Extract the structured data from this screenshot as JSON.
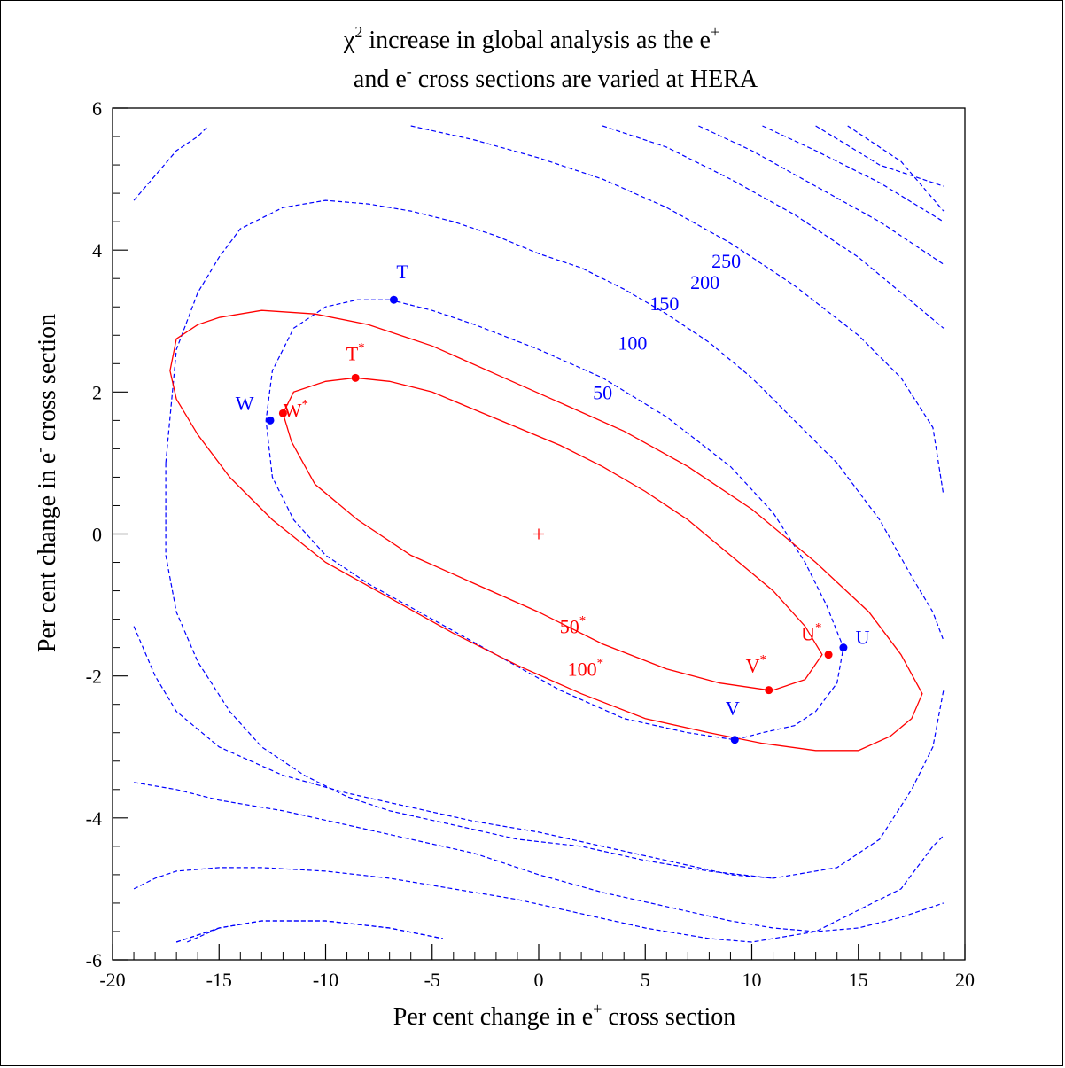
{
  "chart_data": {
    "type": "contour",
    "title": {
      "chi": "χ",
      "line1_after": " increase in global analysis as the e",
      "line2_a": "and e",
      "line2_b": " cross sections are varied at HERA"
    },
    "xlabel": {
      "pre": "Per cent change in e",
      "sup": "+",
      "post": " cross section"
    },
    "ylabel": {
      "pre": "Per cent change in e",
      "sup": "-",
      "post": " cross section"
    },
    "xlim": [
      -20,
      20
    ],
    "ylim": [
      -6,
      6
    ],
    "x_ticks": [
      {
        "v": -20,
        "label": "-20"
      },
      {
        "v": -15,
        "label": "-15"
      },
      {
        "v": -10,
        "label": "-10"
      },
      {
        "v": -5,
        "label": "-5"
      },
      {
        "v": 0,
        "label": "0"
      },
      {
        "v": 5,
        "label": "5"
      },
      {
        "v": 10,
        "label": "10"
      },
      {
        "v": 15,
        "label": "15"
      },
      {
        "v": 20,
        "label": "20"
      }
    ],
    "y_ticks": [
      {
        "v": -6,
        "label": "-6"
      },
      {
        "v": -4,
        "label": "-4"
      },
      {
        "v": -2,
        "label": "-2"
      },
      {
        "v": 0,
        "label": "0"
      },
      {
        "v": 2,
        "label": "2"
      },
      {
        "v": 4,
        "label": "4"
      },
      {
        "v": 6,
        "label": "6"
      }
    ],
    "colors": {
      "blue": "#0000ff",
      "red": "#ff0000",
      "axis": "#000000"
    },
    "center": [
      0,
      0
    ],
    "blue_contours": [
      {
        "points": [
          [
            -19,
            4.7
          ],
          [
            -18,
            5.05
          ],
          [
            -17,
            5.4
          ],
          [
            -16,
            5.6
          ],
          [
            -15.5,
            5.75
          ]
        ]
      },
      {
        "points": [
          [
            -6,
            5.75
          ],
          [
            -3,
            5.55
          ],
          [
            0,
            5.3
          ],
          [
            3,
            5.0
          ],
          [
            6,
            4.6
          ],
          [
            9,
            4.1
          ],
          [
            12,
            3.5
          ],
          [
            15,
            2.8
          ],
          [
            17,
            2.2
          ],
          [
            18.5,
            1.5
          ],
          [
            19,
            0.55
          ]
        ]
      },
      {
        "points": [
          [
            3,
            5.75
          ],
          [
            6,
            5.45
          ],
          [
            9,
            5.0
          ],
          [
            12,
            4.5
          ],
          [
            15,
            3.9
          ],
          [
            17,
            3.4
          ],
          [
            19,
            2.9
          ]
        ]
      },
      {
        "points": [
          [
            7.5,
            5.75
          ],
          [
            10,
            5.4
          ],
          [
            13,
            4.9
          ],
          [
            16,
            4.4
          ],
          [
            19,
            3.8
          ]
        ]
      },
      {
        "points": [
          [
            10.5,
            5.75
          ],
          [
            13,
            5.4
          ],
          [
            16,
            4.95
          ],
          [
            19,
            4.4
          ]
        ]
      },
      {
        "points": [
          [
            13,
            5.75
          ],
          [
            16,
            5.2
          ],
          [
            19,
            4.9
          ]
        ]
      },
      {
        "points": [
          [
            14.5,
            5.75
          ],
          [
            17,
            5.25
          ],
          [
            19,
            4.55
          ]
        ]
      },
      {
        "points": [
          [
            -17.5,
            1.0
          ],
          [
            -17,
            2.6
          ],
          [
            -16,
            3.4
          ],
          [
            -15,
            3.9
          ],
          [
            -14,
            4.3
          ],
          [
            -12,
            4.6
          ],
          [
            -10,
            4.7
          ],
          [
            -8,
            4.65
          ],
          [
            -6,
            4.55
          ],
          [
            -4,
            4.4
          ],
          [
            -2,
            4.2
          ],
          [
            0,
            3.95
          ],
          [
            2,
            3.75
          ],
          [
            4,
            3.45
          ],
          [
            6,
            3.1
          ],
          [
            8,
            2.7
          ],
          [
            10,
            2.2
          ],
          [
            12,
            1.6
          ],
          [
            14,
            1.0
          ],
          [
            16,
            0.2
          ],
          [
            17.5,
            -0.6
          ],
          [
            18.5,
            -1.1
          ],
          [
            19,
            -1.5
          ]
        ]
      },
      {
        "points": [
          [
            -17.5,
            1.0
          ],
          [
            -17.5,
            -0.3
          ],
          [
            -17,
            -1.1
          ],
          [
            -16,
            -1.8
          ],
          [
            -14.5,
            -2.5
          ],
          [
            -13,
            -3.0
          ],
          [
            -11,
            -3.4
          ],
          [
            -9,
            -3.7
          ],
          [
            -7,
            -3.9
          ],
          [
            -4,
            -4.1
          ],
          [
            -1,
            -4.3
          ],
          [
            2,
            -4.4
          ],
          [
            5,
            -4.6
          ],
          [
            8,
            -4.75
          ],
          [
            11,
            -4.85
          ],
          [
            14,
            -4.7
          ],
          [
            16,
            -4.3
          ],
          [
            17.5,
            -3.6
          ],
          [
            18.5,
            -3.0
          ],
          [
            19,
            -2.2
          ]
        ]
      },
      {
        "points": [
          [
            -19,
            -1.3
          ],
          [
            -18,
            -2.0
          ],
          [
            -17,
            -2.5
          ],
          [
            -15,
            -3.0
          ],
          [
            -12,
            -3.4
          ],
          [
            -9,
            -3.65
          ],
          [
            -6,
            -3.85
          ],
          [
            -3,
            -4.05
          ],
          [
            0,
            -4.2
          ],
          [
            3,
            -4.4
          ],
          [
            6,
            -4.6
          ],
          [
            9,
            -4.8
          ],
          [
            11,
            -4.85
          ]
        ]
      },
      {
        "points": [
          [
            -19,
            -3.5
          ],
          [
            -17,
            -3.6
          ],
          [
            -15,
            -3.75
          ],
          [
            -12,
            -3.9
          ],
          [
            -9,
            -4.1
          ],
          [
            -6,
            -4.3
          ],
          [
            -3,
            -4.5
          ],
          [
            0,
            -4.8
          ],
          [
            3,
            -5.05
          ],
          [
            6,
            -5.25
          ],
          [
            9,
            -5.45
          ],
          [
            11,
            -5.55
          ],
          [
            13,
            -5.6
          ],
          [
            15,
            -5.55
          ],
          [
            17,
            -5.4
          ],
          [
            19,
            -5.2
          ]
        ]
      },
      {
        "points": [
          [
            -19,
            -5.0
          ],
          [
            -18,
            -4.85
          ],
          [
            -17,
            -4.75
          ],
          [
            -15,
            -4.7
          ],
          [
            -13,
            -4.7
          ],
          [
            -10,
            -4.75
          ],
          [
            -7,
            -4.85
          ],
          [
            -4,
            -5.0
          ],
          [
            -1,
            -5.15
          ],
          [
            2,
            -5.35
          ],
          [
            5,
            -5.55
          ],
          [
            8,
            -5.7
          ],
          [
            10,
            -5.75
          ],
          [
            13,
            -5.6
          ],
          [
            15,
            -5.3
          ],
          [
            17,
            -5.0
          ],
          [
            18.5,
            -4.4
          ],
          [
            19,
            -4.25
          ]
        ]
      },
      {
        "points": [
          [
            -17,
            -5.75
          ],
          [
            -15,
            -5.55
          ],
          [
            -13,
            -5.45
          ],
          [
            -10,
            -5.45
          ],
          [
            -7,
            -5.55
          ],
          [
            -4.5,
            -5.7
          ]
        ]
      },
      {
        "points": [
          [
            -17,
            -5.75
          ],
          [
            -15,
            -5.55
          ],
          [
            -13,
            -5.45
          ],
          [
            -10,
            -5.45
          ],
          [
            -7,
            -5.55
          ],
          [
            -4.5,
            -5.7
          ]
        ]
      },
      {
        "points": [
          [
            -16.5,
            -5.75
          ],
          [
            -15,
            -5.55
          ]
        ]
      },
      {
        "points": [
          [
            -7,
            3.3
          ],
          [
            -5,
            3.15
          ],
          [
            -3,
            2.95
          ],
          [
            0,
            2.6
          ],
          [
            3,
            2.2
          ],
          [
            6,
            1.65
          ],
          [
            9,
            0.95
          ],
          [
            11,
            0.3
          ],
          [
            12.5,
            -0.4
          ],
          [
            13.5,
            -1.0
          ],
          [
            14.3,
            -1.6
          ],
          [
            14,
            -2.1
          ],
          [
            13,
            -2.5
          ],
          [
            12,
            -2.7
          ],
          [
            10.5,
            -2.8
          ],
          [
            9.2,
            -2.9
          ],
          [
            7,
            -2.8
          ],
          [
            4,
            -2.6
          ],
          [
            1,
            -2.2
          ],
          [
            -2,
            -1.7
          ],
          [
            -5,
            -1.2
          ],
          [
            -8,
            -0.7
          ],
          [
            -10,
            -0.3
          ],
          [
            -11.5,
            0.2
          ],
          [
            -12.5,
            0.8
          ],
          [
            -12.8,
            1.6
          ],
          [
            -12.5,
            2.3
          ],
          [
            -11.5,
            2.9
          ],
          [
            -10,
            3.2
          ],
          [
            -8.5,
            3.3
          ],
          [
            -7,
            3.3
          ]
        ]
      }
    ],
    "red_contours": [
      {
        "name": "50*",
        "points": [
          [
            -8.6,
            2.2
          ],
          [
            -7,
            2.15
          ],
          [
            -5,
            2.0
          ],
          [
            -3,
            1.75
          ],
          [
            -1,
            1.5
          ],
          [
            1,
            1.25
          ],
          [
            3,
            0.95
          ],
          [
            5,
            0.6
          ],
          [
            7,
            0.2
          ],
          [
            9,
            -0.3
          ],
          [
            11,
            -0.8
          ],
          [
            12.5,
            -1.3
          ],
          [
            13.3,
            -1.7
          ],
          [
            12.5,
            -2.05
          ],
          [
            11,
            -2.2
          ],
          [
            10.8,
            -2.2
          ],
          [
            8.5,
            -2.1
          ],
          [
            6,
            -1.9
          ],
          [
            3,
            -1.55
          ],
          [
            0,
            -1.1
          ],
          [
            -3,
            -0.7
          ],
          [
            -6,
            -0.3
          ],
          [
            -8.5,
            0.2
          ],
          [
            -10.5,
            0.7
          ],
          [
            -11.6,
            1.3
          ],
          [
            -12,
            1.7
          ],
          [
            -11.5,
            2.0
          ],
          [
            -10,
            2.15
          ],
          [
            -8.6,
            2.2
          ]
        ]
      },
      {
        "name": "100*",
        "points": [
          [
            -15,
            3.05
          ],
          [
            -13,
            3.15
          ],
          [
            -10.5,
            3.1
          ],
          [
            -8,
            2.95
          ],
          [
            -5,
            2.65
          ],
          [
            -2,
            2.25
          ],
          [
            1,
            1.85
          ],
          [
            4,
            1.45
          ],
          [
            7,
            0.95
          ],
          [
            10,
            0.35
          ],
          [
            13,
            -0.4
          ],
          [
            15.5,
            -1.1
          ],
          [
            17,
            -1.7
          ],
          [
            18,
            -2.25
          ],
          [
            17.5,
            -2.6
          ],
          [
            16.5,
            -2.85
          ],
          [
            15,
            -3.05
          ],
          [
            13,
            -3.05
          ],
          [
            10.5,
            -2.95
          ],
          [
            8,
            -2.8
          ],
          [
            5,
            -2.6
          ],
          [
            2,
            -2.25
          ],
          [
            -1,
            -1.85
          ],
          [
            -4,
            -1.4
          ],
          [
            -7,
            -0.9
          ],
          [
            -10,
            -0.4
          ],
          [
            -12.5,
            0.2
          ],
          [
            -14.5,
            0.8
          ],
          [
            -16,
            1.4
          ],
          [
            -17,
            1.9
          ],
          [
            -17.3,
            2.3
          ],
          [
            -17,
            2.75
          ],
          [
            -16,
            2.95
          ],
          [
            -15,
            3.05
          ]
        ]
      }
    ],
    "blue_labels": [
      {
        "text": "50",
        "x": 3,
        "y": 1.9
      },
      {
        "text": "100",
        "x": 4.4,
        "y": 2.6
      },
      {
        "text": "150",
        "x": 5.9,
        "y": 3.15
      },
      {
        "text": "200",
        "x": 7.8,
        "y": 3.45
      },
      {
        "text": "250",
        "x": 8.8,
        "y": 3.75
      }
    ],
    "red_labels": [
      {
        "text": "50",
        "sup": "*",
        "x": 1.6,
        "y": -1.4
      },
      {
        "text": "100",
        "sup": "*",
        "x": 2.2,
        "y": -2.0
      }
    ],
    "blue_points": [
      {
        "name": "T",
        "x": -6.8,
        "y": 3.3,
        "lx": -6.4,
        "ly": 3.6
      },
      {
        "name": "W",
        "x": -12.6,
        "y": 1.6,
        "lx": -13.8,
        "ly": 1.75
      },
      {
        "name": "U",
        "x": 14.3,
        "y": -1.6,
        "lx": 15.2,
        "ly": -1.55
      },
      {
        "name": "V",
        "x": 9.2,
        "y": -2.9,
        "lx": 9.1,
        "ly": -2.55
      }
    ],
    "red_points": [
      {
        "name": "T",
        "sup": "*",
        "x": -8.6,
        "y": 2.2,
        "lx": -8.6,
        "ly": 2.45
      },
      {
        "name": "W",
        "sup": "*",
        "x": -12,
        "y": 1.7,
        "lx": -11.4,
        "ly": 1.65
      },
      {
        "name": "U",
        "sup": "*",
        "x": 13.6,
        "y": -1.7,
        "lx": 12.8,
        "ly": -1.5
      },
      {
        "name": "V",
        "sup": "*",
        "x": 10.8,
        "y": -2.2,
        "lx": 10.2,
        "ly": -1.95
      }
    ]
  }
}
